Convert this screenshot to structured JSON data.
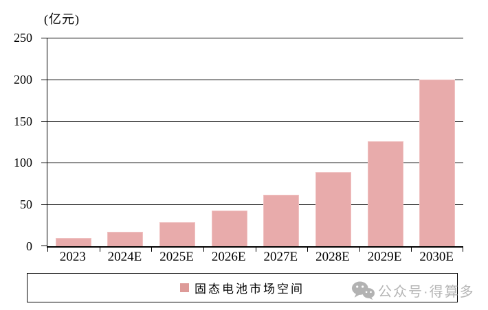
{
  "chart_data": {
    "type": "bar",
    "title": "(亿元)",
    "categories": [
      "2023",
      "2024E",
      "2025E",
      "2026E",
      "2027E",
      "2028E",
      "2029E",
      "2030E"
    ],
    "values": [
      10,
      17,
      29,
      43,
      62,
      89,
      126,
      200
    ],
    "series": [
      {
        "name": "固态电池市场空间",
        "values": [
          10,
          17,
          29,
          43,
          62,
          89,
          126,
          200
        ]
      }
    ],
    "xlabel": "",
    "ylabel": "(亿元)",
    "ylim": [
      0,
      250
    ],
    "y_ticks": [
      0,
      50,
      100,
      150,
      200,
      250
    ],
    "grid": "horizontal-on",
    "legend_position": "bottom-center-boxed",
    "bar_color": "#e8abab",
    "bar_border_color": "#f0c2c2",
    "legend_swatch_color": "#dd9a98",
    "axis_color": "#000000"
  },
  "legend": {
    "label": "固态电池市场空间"
  },
  "watermark": {
    "icon": "wechat-icon",
    "text": "公众号·得算多",
    "color": "#b5b5b5"
  }
}
